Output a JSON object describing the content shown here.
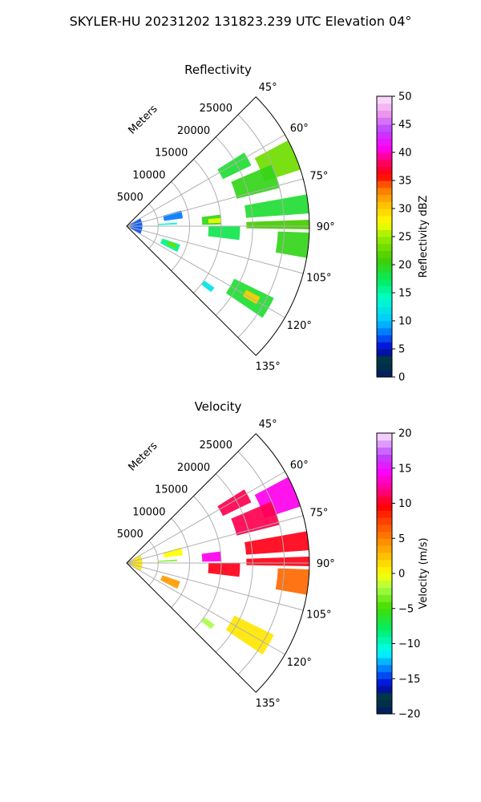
{
  "figure": {
    "title": "SKYLER-HU  20231202  131823.239 UTC Elevation 04°"
  },
  "chart_data": [
    {
      "type": "heatmap",
      "title": "Reflectivity",
      "radial_label": "Meters",
      "range_ticks": [
        5000,
        10000,
        15000,
        20000,
        25000
      ],
      "range_tick_labels": [
        "5000",
        "10000",
        "15000",
        "20000",
        "25000"
      ],
      "rlim": [
        0,
        29000
      ],
      "azimuth_ticks": [
        45,
        60,
        75,
        90,
        105,
        120,
        135
      ],
      "azimuth_tick_labels": [
        "45°",
        "60°",
        "75°",
        "90°",
        "105°",
        "120°",
        "135°"
      ],
      "azimuth_range_deg": [
        45,
        135
      ],
      "grid": true,
      "colorbar": {
        "label": "Reflectivity dBZ",
        "range": [
          0,
          50
        ],
        "ticks": [
          "0",
          "5",
          "10",
          "15",
          "20",
          "25",
          "30",
          "35",
          "40",
          "45",
          "50"
        ]
      },
      "echoes": [
        {
          "az": [
            62,
            72
          ],
          "r": [
            23000,
            29000
          ],
          "value": 23
        },
        {
          "az": [
            58,
            64
          ],
          "r": [
            17000,
            22000
          ],
          "value": 19
        },
        {
          "az": [
            67,
            76
          ],
          "r": [
            18000,
            25000
          ],
          "value": 20
        },
        {
          "az": [
            80,
            86
          ],
          "r": [
            19000,
            29000
          ],
          "value": 19
        },
        {
          "az": [
            88,
            91
          ],
          "r": [
            19000,
            29000
          ],
          "value": 21
        },
        {
          "az": [
            92,
            100
          ],
          "r": [
            24000,
            29000
          ],
          "value": 20
        },
        {
          "az": [
            83,
            89
          ],
          "r": [
            12000,
            15000
          ],
          "value": 20
        },
        {
          "az": [
            85,
            88
          ],
          "r": [
            13000,
            15000
          ],
          "value": 27
        },
        {
          "az": [
            90,
            97
          ],
          "r": [
            13000,
            18000
          ],
          "value": 18
        },
        {
          "az": [
            116,
            124
          ],
          "r": [
            19000,
            26000
          ],
          "value": 19
        },
        {
          "az": [
            118,
            121
          ],
          "r": [
            21500,
            24000
          ],
          "value": 30
        },
        {
          "az": [
            109,
            117
          ],
          "r": [
            6000,
            9000
          ],
          "value": 16
        },
        {
          "az": [
            110,
            114
          ],
          "r": [
            7000,
            8500
          ],
          "value": 23
        },
        {
          "az": [
            86,
            88
          ],
          "r": [
            5000,
            8000
          ],
          "value": 13
        },
        {
          "az": [
            125,
            128
          ],
          "r": [
            15000,
            17000
          ],
          "value": 12
        },
        {
          "az": [
            74,
            82
          ],
          "r": [
            6000,
            9000
          ],
          "value": 8
        },
        {
          "az": [
            60,
            120
          ],
          "r": [
            0,
            2500
          ],
          "value": 7
        }
      ]
    },
    {
      "type": "heatmap",
      "title": "Velocity",
      "radial_label": "Meters",
      "range_ticks": [
        5000,
        10000,
        15000,
        20000,
        25000
      ],
      "range_tick_labels": [
        "5000",
        "10000",
        "15000",
        "20000",
        "25000"
      ],
      "rlim": [
        0,
        29000
      ],
      "azimuth_ticks": [
        45,
        60,
        75,
        90,
        105,
        120,
        135
      ],
      "azimuth_tick_labels": [
        "45°",
        "60°",
        "75°",
        "90°",
        "105°",
        "120°",
        "135°"
      ],
      "azimuth_range_deg": [
        45,
        135
      ],
      "grid": true,
      "colorbar": {
        "label": "Velocity (m/s)",
        "range": [
          -20,
          20
        ],
        "ticks": [
          "−20",
          "−15",
          "−10",
          "−5",
          "0",
          "5",
          "10",
          "15",
          "20"
        ]
      },
      "echoes": [
        {
          "az": [
            62,
            72
          ],
          "r": [
            23000,
            29000
          ],
          "value": 14
        },
        {
          "az": [
            58,
            64
          ],
          "r": [
            17000,
            22000
          ],
          "value": 11
        },
        {
          "az": [
            67,
            76
          ],
          "r": [
            18000,
            25000
          ],
          "value": 11
        },
        {
          "az": [
            80,
            86
          ],
          "r": [
            19000,
            29000
          ],
          "value": 10
        },
        {
          "az": [
            88,
            91
          ],
          "r": [
            19000,
            29000
          ],
          "value": 10
        },
        {
          "az": [
            92,
            100
          ],
          "r": [
            24000,
            29000
          ],
          "value": 6
        },
        {
          "az": [
            83,
            89
          ],
          "r": [
            12000,
            15000
          ],
          "value": 14
        },
        {
          "az": [
            90,
            97
          ],
          "r": [
            13000,
            18000
          ],
          "value": 10
        },
        {
          "az": [
            116,
            124
          ],
          "r": [
            19000,
            26000
          ],
          "value": 1
        },
        {
          "az": [
            109,
            117
          ],
          "r": [
            6000,
            9000
          ],
          "value": 4
        },
        {
          "az": [
            86,
            88
          ],
          "r": [
            5000,
            8000
          ],
          "value": -3
        },
        {
          "az": [
            125,
            128
          ],
          "r": [
            15000,
            17000
          ],
          "value": -2
        },
        {
          "az": [
            74,
            82
          ],
          "r": [
            6000,
            9000
          ],
          "value": 0
        },
        {
          "az": [
            60,
            120
          ],
          "r": [
            0,
            2500
          ],
          "value": 1
        }
      ]
    }
  ]
}
